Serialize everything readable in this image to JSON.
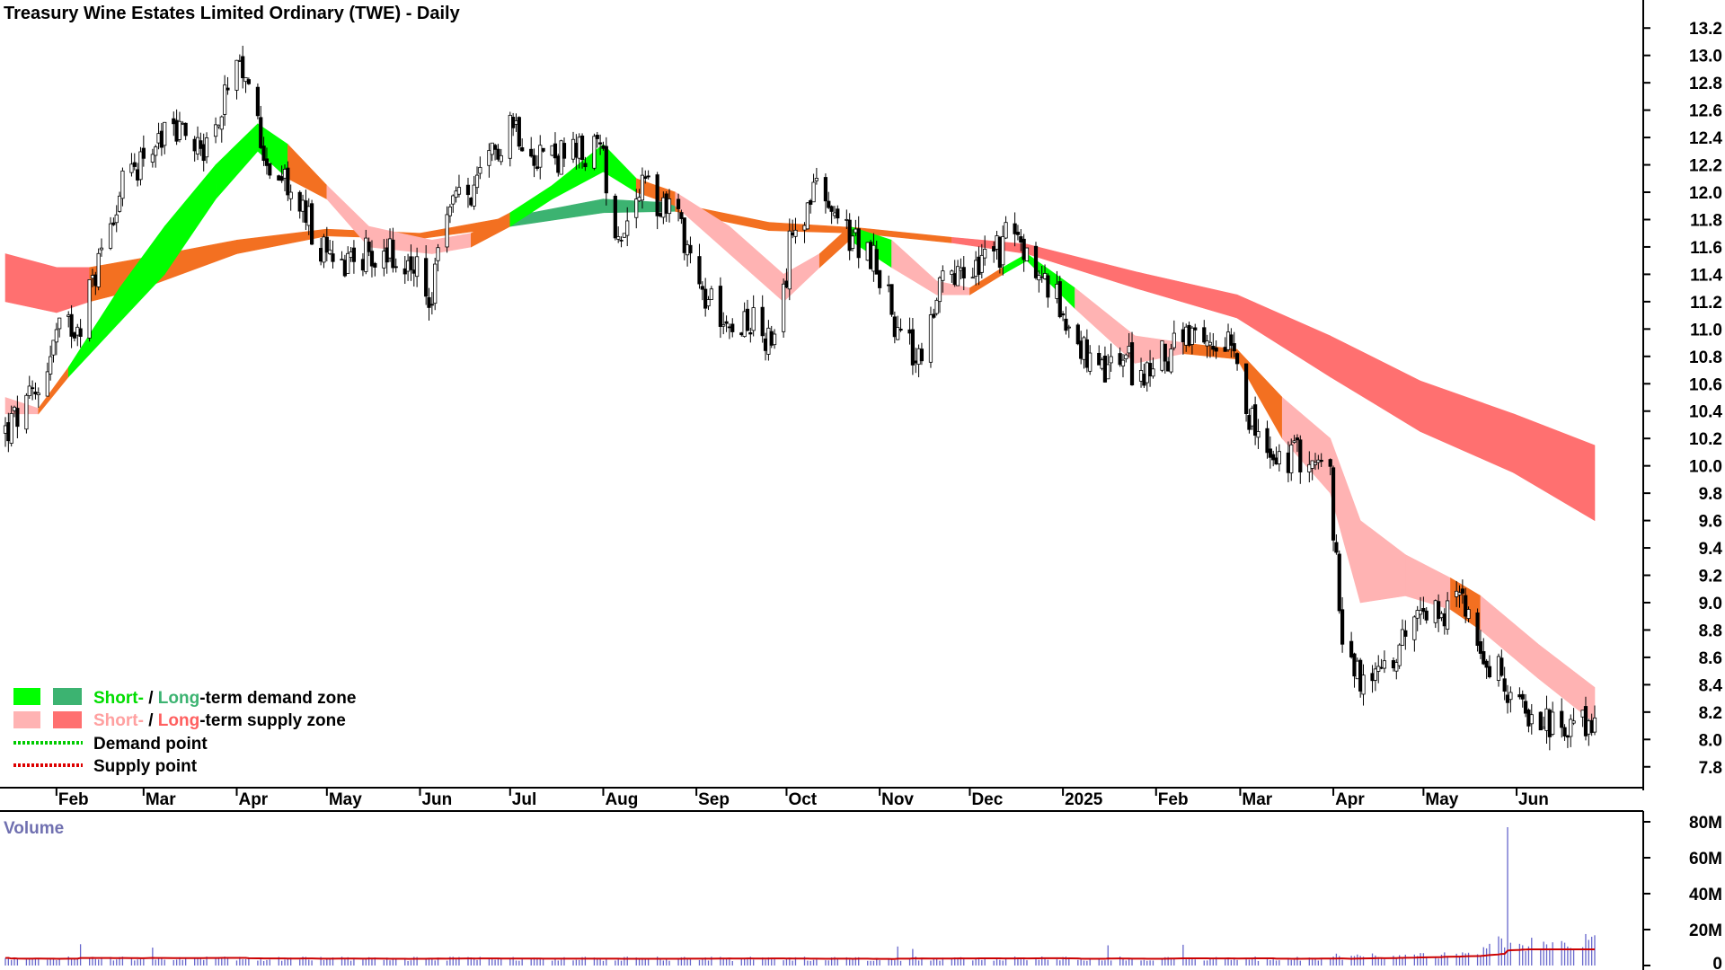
{
  "title": "Treasury Wine Estates Limited Ordinary (TWE) - Daily",
  "colors": {
    "short_demand": "#00ff00",
    "long_demand": "#3cb371",
    "short_supply": "#ffb3b3",
    "long_supply": "#ff7070",
    "transition": "#f37021",
    "demand_point": "#00cc00",
    "supply_point": "#dd0000",
    "volume_bar": "#6666cc",
    "volume_ma": "#cc0000"
  },
  "legend": {
    "row1": {
      "short": "Short-",
      "sep": " / ",
      "long": "Long",
      "rest": "-term demand zone"
    },
    "row2": {
      "short": "Short-",
      "sep": " / ",
      "long": "Long",
      "rest": "-term supply zone"
    },
    "row3": "Demand point",
    "row4": "Supply point"
  },
  "volume": {
    "label": "Volume",
    "ticks": [
      "80M",
      "60M",
      "40M",
      "20M",
      "0"
    ]
  },
  "chart_data": {
    "type": "candlestick",
    "y_ticks": [
      "13.2",
      "13.0",
      "12.8",
      "12.6",
      "12.4",
      "12.2",
      "12.0",
      "11.8",
      "11.6",
      "11.4",
      "11.2",
      "11.0",
      "10.8",
      "10.6",
      "10.4",
      "10.2",
      "10.0",
      "9.8",
      "9.6",
      "9.4",
      "9.2",
      "9.0",
      "8.8",
      "8.6",
      "8.4",
      "8.2",
      "8.0",
      "7.8"
    ],
    "ylim": [
      7.7,
      13.3
    ],
    "x_labels": [
      "Feb",
      "Mar",
      "Apr",
      "May",
      "Jun",
      "Jul",
      "Aug",
      "Sep",
      "Oct",
      "Nov",
      "Dec",
      "2025",
      "Feb",
      "Mar",
      "Apr",
      "May",
      "Jun"
    ],
    "close_path": [
      [
        "2024-01-15",
        10.25
      ],
      [
        "2024-01-25",
        10.5
      ],
      [
        "2024-02-01",
        10.95
      ],
      [
        "2024-02-10",
        11.1
      ],
      [
        "2024-02-20",
        11.9
      ],
      [
        "2024-03-01",
        12.3
      ],
      [
        "2024-03-12",
        12.45
      ],
      [
        "2024-03-22",
        12.35
      ],
      [
        "2024-04-01",
        12.85
      ],
      [
        "2024-04-05",
        12.75
      ],
      [
        "2024-04-12",
        12.2
      ],
      [
        "2024-04-22",
        11.9
      ],
      [
        "2024-05-01",
        11.5
      ],
      [
        "2024-05-12",
        11.55
      ],
      [
        "2024-05-22",
        11.55
      ],
      [
        "2024-05-31",
        11.4
      ],
      [
        "2024-06-05",
        11.2
      ],
      [
        "2024-06-10",
        11.9
      ],
      [
        "2024-06-20",
        12.0
      ],
      [
        "2024-07-01",
        12.55
      ],
      [
        "2024-07-10",
        12.3
      ],
      [
        "2024-07-20",
        12.25
      ],
      [
        "2024-07-31",
        12.3
      ],
      [
        "2024-08-06",
        11.7
      ],
      [
        "2024-08-14",
        12.0
      ],
      [
        "2024-08-25",
        11.9
      ],
      [
        "2024-09-04",
        11.2
      ],
      [
        "2024-09-14",
        11.1
      ],
      [
        "2024-09-22",
        11.0
      ],
      [
        "2024-09-28",
        10.8
      ],
      [
        "2024-10-03",
        11.8
      ],
      [
        "2024-10-12",
        12.0
      ],
      [
        "2024-10-20",
        11.7
      ],
      [
        "2024-10-31",
        11.5
      ],
      [
        "2024-11-08",
        10.9
      ],
      [
        "2024-11-14",
        10.8
      ],
      [
        "2024-11-22",
        11.3
      ],
      [
        "2024-12-01",
        11.4
      ],
      [
        "2024-12-08",
        11.5
      ],
      [
        "2024-12-15",
        11.7
      ],
      [
        "2024-12-24",
        11.4
      ],
      [
        "2025-01-05",
        11.0
      ],
      [
        "2025-01-12",
        10.6
      ],
      [
        "2025-01-20",
        10.8
      ],
      [
        "2025-01-28",
        10.65
      ],
      [
        "2025-02-08",
        10.9
      ],
      [
        "2025-02-18",
        10.85
      ],
      [
        "2025-02-26",
        11.0
      ],
      [
        "2025-03-05",
        10.3
      ],
      [
        "2025-03-12",
        10.0
      ],
      [
        "2025-03-22",
        10.1
      ],
      [
        "2025-03-31",
        9.9
      ],
      [
        "2025-04-03",
        8.9
      ],
      [
        "2025-04-10",
        8.4
      ],
      [
        "2025-04-18",
        8.5
      ],
      [
        "2025-04-26",
        8.8
      ],
      [
        "2025-05-06",
        8.95
      ],
      [
        "2025-05-16",
        9.05
      ],
      [
        "2025-05-22",
        8.6
      ],
      [
        "2025-05-31",
        8.3
      ],
      [
        "2025-06-10",
        8.15
      ],
      [
        "2025-06-18",
        8.0
      ],
      [
        "2025-06-24",
        8.1
      ],
      [
        "2025-06-27",
        8.2
      ]
    ],
    "short_term_zone": [
      [
        "2024-01-15",
        10.5,
        10.38,
        "supply"
      ],
      [
        "2024-01-26",
        10.42,
        10.38,
        "transition"
      ],
      [
        "2024-02-05",
        10.72,
        10.65,
        "demand"
      ],
      [
        "2024-02-22",
        11.3,
        11.05,
        "demand"
      ],
      [
        "2024-03-08",
        11.75,
        11.4,
        "demand"
      ],
      [
        "2024-03-25",
        12.2,
        11.95,
        "demand"
      ],
      [
        "2024-04-08",
        12.5,
        12.3,
        "demand"
      ],
      [
        "2024-04-18",
        12.35,
        12.1,
        "transition"
      ],
      [
        "2024-05-01",
        12.05,
        11.95,
        "supply"
      ],
      [
        "2024-05-15",
        11.75,
        11.6,
        "supply"
      ],
      [
        "2024-06-05",
        11.65,
        11.55,
        "supply"
      ],
      [
        "2024-06-18",
        11.7,
        11.6,
        "transition"
      ],
      [
        "2024-07-01",
        11.85,
        11.75,
        "demand"
      ],
      [
        "2024-07-15",
        12.05,
        11.95,
        "demand"
      ],
      [
        "2024-08-01",
        12.35,
        12.15,
        "demand"
      ],
      [
        "2024-08-12",
        12.1,
        12.0,
        "transition"
      ],
      [
        "2024-08-25",
        12.0,
        11.9,
        "supply"
      ],
      [
        "2024-09-12",
        11.75,
        11.55,
        "supply"
      ],
      [
        "2024-09-30",
        11.4,
        11.2,
        "supply"
      ],
      [
        "2024-10-12",
        11.55,
        11.45,
        "transition"
      ],
      [
        "2024-10-22",
        11.75,
        11.65,
        "demand"
      ],
      [
        "2024-11-05",
        11.65,
        11.45,
        "supply"
      ],
      [
        "2024-11-20",
        11.35,
        11.25,
        "supply"
      ],
      [
        "2024-12-01",
        11.3,
        11.25,
        "transition"
      ],
      [
        "2024-12-12",
        11.45,
        11.4,
        "demand"
      ],
      [
        "2024-12-20",
        11.55,
        11.5,
        "demand"
      ],
      [
        "2025-01-05",
        11.3,
        11.15,
        "supply"
      ],
      [
        "2025-01-25",
        10.95,
        10.75,
        "supply"
      ],
      [
        "2025-02-10",
        10.9,
        10.82,
        "transition"
      ],
      [
        "2025-02-28",
        10.85,
        10.78,
        "transition"
      ],
      [
        "2025-03-15",
        10.5,
        10.2,
        "supply"
      ],
      [
        "2025-03-31",
        10.2,
        9.8,
        "supply"
      ],
      [
        "2025-04-10",
        9.6,
        9.0,
        "supply"
      ],
      [
        "2025-04-25",
        9.35,
        9.05,
        "supply"
      ],
      [
        "2025-05-10",
        9.18,
        8.95,
        "transition"
      ],
      [
        "2025-05-20",
        9.05,
        8.8,
        "supply"
      ],
      [
        "2025-06-08",
        8.7,
        8.45,
        "supply"
      ],
      [
        "2025-06-27",
        8.38,
        8.12,
        "supply"
      ]
    ],
    "long_term_zone": [
      [
        "2024-01-15",
        11.55,
        11.2,
        "supply"
      ],
      [
        "2024-02-01",
        11.45,
        11.12,
        "supply"
      ],
      [
        "2024-02-12",
        11.45,
        11.2,
        "transition"
      ],
      [
        "2024-03-01",
        11.52,
        11.3,
        "transition"
      ],
      [
        "2024-04-01",
        11.65,
        11.55,
        "transition"
      ],
      [
        "2024-05-01",
        11.73,
        11.68,
        "transition"
      ],
      [
        "2024-06-01",
        11.7,
        11.66,
        "transition"
      ],
      [
        "2024-07-01",
        11.82,
        11.75,
        "demand"
      ],
      [
        "2024-08-01",
        11.95,
        11.85,
        "demand"
      ],
      [
        "2024-08-25",
        11.92,
        11.86,
        "transition"
      ],
      [
        "2024-09-25",
        11.78,
        11.72,
        "transition"
      ],
      [
        "2024-10-25",
        11.74,
        11.7,
        "transition"
      ],
      [
        "2024-11-25",
        11.67,
        11.63,
        "supply"
      ],
      [
        "2024-12-20",
        11.62,
        11.55,
        "supply"
      ],
      [
        "2025-01-25",
        11.42,
        11.3,
        "supply"
      ],
      [
        "2025-02-28",
        11.25,
        11.08,
        "supply"
      ],
      [
        "2025-03-31",
        10.95,
        10.65,
        "supply"
      ],
      [
        "2025-04-30",
        10.62,
        10.25,
        "supply"
      ],
      [
        "2025-05-31",
        10.38,
        9.95,
        "supply"
      ],
      [
        "2025-06-27",
        10.15,
        9.6,
        "supply"
      ]
    ],
    "volume": {
      "ylim": [
        0,
        80
      ],
      "unit": "M",
      "spike": [
        "2025-05-29",
        77
      ]
    }
  }
}
